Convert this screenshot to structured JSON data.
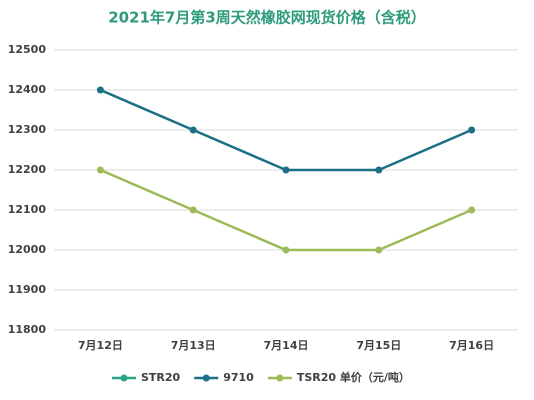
{
  "chart_data": {
    "type": "line",
    "title": "2021年7月第3周天然橡胶网现货价格（含税）",
    "categories": [
      "7月12日",
      "7月13日",
      "7月14日",
      "7月15日",
      "7月16日"
    ],
    "series": [
      {
        "name": "STR20",
        "color": "#2aa58a",
        "values": [
          null,
          null,
          null,
          null,
          null
        ]
      },
      {
        "name": "9710",
        "color": "#1b6f86",
        "values": [
          12400,
          12300,
          12200,
          12200,
          12300
        ]
      },
      {
        "name": "TSR20 单价（元/吨）",
        "color": "#9bbb59",
        "values": [
          12200,
          12100,
          12000,
          12000,
          12100
        ]
      }
    ],
    "ylim": [
      11800,
      12500
    ],
    "yticks": [
      11800,
      11900,
      12000,
      12100,
      12200,
      12300,
      12400,
      12500
    ],
    "grid": true
  }
}
